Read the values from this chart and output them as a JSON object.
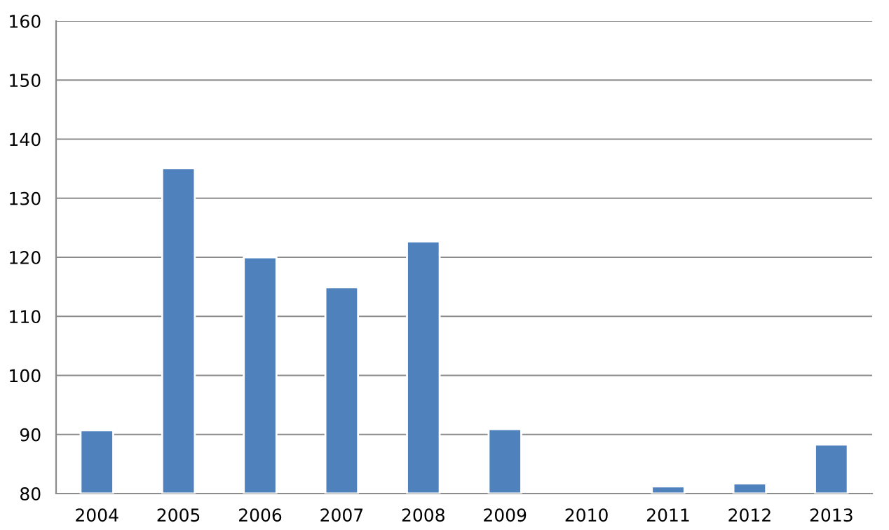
{
  "chart_data": {
    "type": "bar",
    "categories": [
      "2004",
      "2005",
      "2006",
      "2007",
      "2008",
      "2009",
      "2010",
      "2011",
      "2012",
      "2013"
    ],
    "series": [
      {
        "color": "#4f81bd",
        "values": [
          90.7,
          135.1,
          120.0,
          114.9,
          122.7,
          90.9,
          null,
          81.2,
          81.7,
          88.3
        ]
      }
    ],
    "ylim": [
      80,
      160
    ],
    "yticks": [
      80,
      90,
      100,
      110,
      120,
      130,
      140,
      150,
      160
    ],
    "grid": "y",
    "legend": false
  }
}
